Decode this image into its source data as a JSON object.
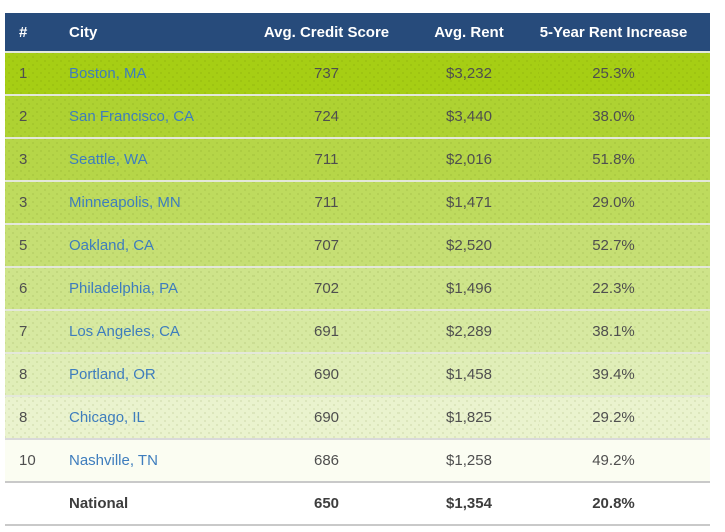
{
  "table": {
    "headers": [
      "#",
      "City",
      "Avg. Credit Score",
      "Avg. Rent",
      "5-Year Rent Increase"
    ],
    "rows": [
      {
        "rank": "1",
        "city": "Boston, MA",
        "score": "737",
        "rent": "$3,232",
        "increase": "25.3%",
        "bg": "#a6ce14",
        "link": true,
        "dots": true,
        "sep": "light",
        "bold": false
      },
      {
        "rank": "2",
        "city": "San Francisco, CA",
        "score": "724",
        "rent": "$3,440",
        "increase": "38.0%",
        "bg": "#aed232",
        "link": true,
        "dots": true,
        "sep": "light",
        "bold": false
      },
      {
        "rank": "3",
        "city": "Seattle, WA",
        "score": "711",
        "rent": "$2,016",
        "increase": "51.8%",
        "bg": "#b6d648",
        "link": true,
        "dots": true,
        "sep": "light",
        "bold": false
      },
      {
        "rank": "3",
        "city": "Minneapolis, MN",
        "score": "711",
        "rent": "$1,471",
        "increase": "29.0%",
        "bg": "#bedb5e",
        "link": true,
        "dots": true,
        "sep": "light",
        "bold": false
      },
      {
        "rank": "5",
        "city": "Oakland, CA",
        "score": "707",
        "rent": "$2,520",
        "increase": "52.7%",
        "bg": "#c6df74",
        "link": true,
        "dots": true,
        "sep": "light",
        "bold": false
      },
      {
        "rank": "6",
        "city": "Philadelphia, PA",
        "score": "702",
        "rent": "$1,496",
        "increase": "22.3%",
        "bg": "#cee48a",
        "link": true,
        "dots": true,
        "sep": "light",
        "bold": false
      },
      {
        "rank": "7",
        "city": "Los Angeles, CA",
        "score": "691",
        "rent": "$2,289",
        "increase": "38.1%",
        "bg": "#d7e9a1",
        "link": true,
        "dots": true,
        "sep": "light",
        "bold": false
      },
      {
        "rank": "8",
        "city": "Portland, OR",
        "score": "690",
        "rent": "$1,458",
        "increase": "39.4%",
        "bg": "#e0eeb8",
        "link": true,
        "dots": true,
        "sep": "light",
        "bold": false
      },
      {
        "rank": "8",
        "city": "Chicago, IL",
        "score": "690",
        "rent": "$1,825",
        "increase": "29.2%",
        "bg": "#eaf3ce",
        "link": true,
        "dots": true,
        "sep": "light",
        "bold": false
      },
      {
        "rank": "10",
        "city": "Nashville, TN",
        "score": "686",
        "rent": "$1,258",
        "increase": "49.2%",
        "bg": "#fbfdf2",
        "link": true,
        "dots": false,
        "sep": "mid",
        "bold": false
      },
      {
        "rank": "",
        "city": "National",
        "score": "650",
        "rent": "$1,354",
        "increase": "20.8%",
        "bg": "#ffffff",
        "link": false,
        "dots": false,
        "sep": "gray",
        "bold": true
      }
    ]
  },
  "colors": {
    "header_bg": "#274b7b",
    "header_text": "#ffffff",
    "link": "#3e7dbd",
    "cell_text": "#4f4f4f",
    "separator_light": "#e4e8da",
    "separator_mid": "#d9d9d9",
    "separator_gray": "#c9c9c9",
    "top_row_green": "#a6ce14"
  },
  "chart_data": {
    "type": "table",
    "title": "",
    "columns": [
      "#",
      "City",
      "Avg. Credit Score",
      "Avg. Rent",
      "5-Year Rent Increase"
    ],
    "rows": [
      [
        1,
        "Boston, MA",
        737,
        3232,
        25.3
      ],
      [
        2,
        "San Francisco, CA",
        724,
        3440,
        38.0
      ],
      [
        3,
        "Seattle, WA",
        711,
        2016,
        51.8
      ],
      [
        3,
        "Minneapolis, MN",
        711,
        1471,
        29.0
      ],
      [
        5,
        "Oakland, CA",
        707,
        2520,
        52.7
      ],
      [
        6,
        "Philadelphia, PA",
        702,
        1496,
        22.3
      ],
      [
        7,
        "Los Angeles, CA",
        691,
        2289,
        38.1
      ],
      [
        8,
        "Portland, OR",
        690,
        1458,
        39.4
      ],
      [
        8,
        "Chicago, IL",
        690,
        1825,
        29.2
      ],
      [
        10,
        "Nashville, TN",
        686,
        1258,
        49.2
      ],
      [
        null,
        "National",
        650,
        1354,
        20.8
      ]
    ],
    "notes": "rent in USD per month, increase in percent over 5 years; row shading fades from lime green (rank 1) to white (rank 10 / National)"
  }
}
